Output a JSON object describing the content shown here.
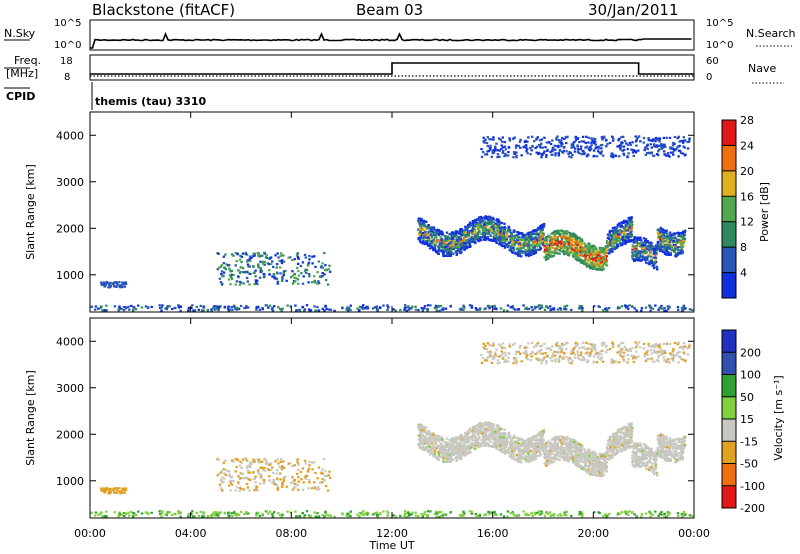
{
  "header": {
    "station": "Blackstone (fitACF)",
    "beam": "Beam 03",
    "date": "30/Jan/2011"
  },
  "summary_panels": {
    "nsky_label": "N.Sky",
    "nsearch_label": "N.Search",
    "freq_label_1": "Freq.",
    "freq_label_2": "[MHz]",
    "nave_label": "Nave",
    "cpid_label": "CPID",
    "cpid_value": "themis (tau) 3310",
    "nsky_ticks": [
      "10^5",
      "10^0"
    ],
    "nsearch_ticks": [
      "10^5",
      "10^0"
    ],
    "freq_ticks": [
      "18",
      "8"
    ],
    "nave_ticks": [
      "60",
      "0"
    ]
  },
  "colors": {
    "frame": "#000000",
    "grey_scatter": "#c8c8c0"
  },
  "chart_data": [
    {
      "type": "heatmap",
      "name": "power",
      "ylabel": "Slant Range [km]",
      "xlabel": "",
      "yticks": [
        "1000",
        "2000",
        "3000",
        "4000"
      ],
      "ylim": [
        200,
        4500
      ],
      "xlim": [
        0,
        24
      ],
      "colorbar": {
        "label": "Power [dB]",
        "ticks": [
          "4",
          "8",
          "12",
          "16",
          "20",
          "24",
          "28"
        ],
        "colors": [
          "#1030e0",
          "#2855b8",
          "#308860",
          "#50a850",
          "#e0b020",
          "#f07010",
          "#e01818"
        ]
      }
    },
    {
      "type": "heatmap",
      "name": "velocity",
      "ylabel": "Slant Range [km]",
      "xlabel": "Time UT",
      "yticks": [
        "1000",
        "2000",
        "3000",
        "4000"
      ],
      "xticks": [
        "00:00",
        "04:00",
        "08:00",
        "12:00",
        "16:00",
        "20:00",
        "00:00"
      ],
      "ylim": [
        200,
        4500
      ],
      "xlim": [
        0,
        24
      ],
      "colorbar": {
        "label": "Velocity [m s⁻¹]",
        "ticks": [
          "200",
          "100",
          "50",
          "15",
          "-15",
          "-50",
          "-100",
          "-200"
        ],
        "colors": [
          "#2030c0",
          "#3050b0",
          "#30a030",
          "#80d040",
          "#c8c8c0",
          "#e0a020",
          "#f07010",
          "#e01818"
        ]
      }
    }
  ]
}
